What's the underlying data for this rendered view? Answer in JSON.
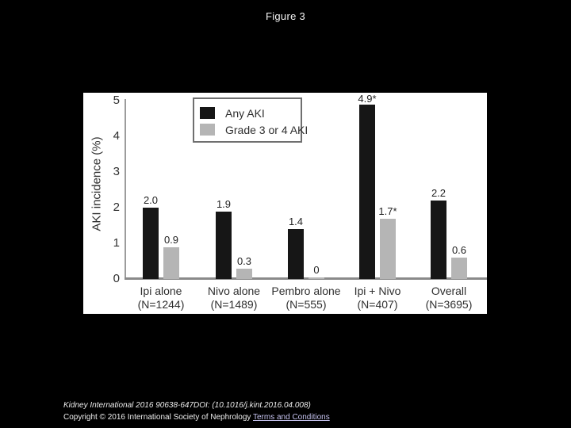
{
  "title": "Figure 3",
  "chart_data": {
    "type": "bar",
    "title": "",
    "xlabel": "",
    "ylabel": "AKI incidence (%)",
    "ylim": [
      0,
      5
    ],
    "yticks": [
      0,
      1,
      2,
      3,
      4,
      5
    ],
    "grid": false,
    "legend_position": "top-left-inside",
    "categories": [
      "Ipi alone",
      "Nivo alone",
      "Pembro alone",
      "Ipi + Nivo",
      "Overall"
    ],
    "category_sublabels": [
      "(N=1244)",
      "(N=1489)",
      "(N=555)",
      "(N=407)",
      "(N=3695)"
    ],
    "series": [
      {
        "name": "Any AKI",
        "color": "#161616",
        "values": [
          2.0,
          1.9,
          1.4,
          4.9,
          2.2
        ],
        "value_labels": [
          "2.0",
          "1.9",
          "1.4",
          "4.9*",
          "2.2"
        ]
      },
      {
        "name": "Grade 3 or 4 AKI",
        "color": "#b5b5b5",
        "values": [
          0.9,
          0.3,
          0,
          1.7,
          0.6
        ],
        "value_labels": [
          "0.9",
          "0.3",
          "0",
          "1.7*",
          "0.6"
        ]
      }
    ]
  },
  "footer": {
    "citation": "Kidney International 2016 90638-647DOI: (10.1016/j.kint.2016.04.008)",
    "copyright": "Copyright © 2016 International Society of Nephrology ",
    "terms_link": "Terms and Conditions"
  },
  "colors": {
    "background": "#000000",
    "chart_background": "#ffffff",
    "axis_line": "#9c9c9c",
    "baseline": "#8a8a8a",
    "chart_text": "#2f2f2f",
    "legend_border": "#6f6f6f",
    "footer_text": "#ededed",
    "link": "#c6c3f0"
  }
}
